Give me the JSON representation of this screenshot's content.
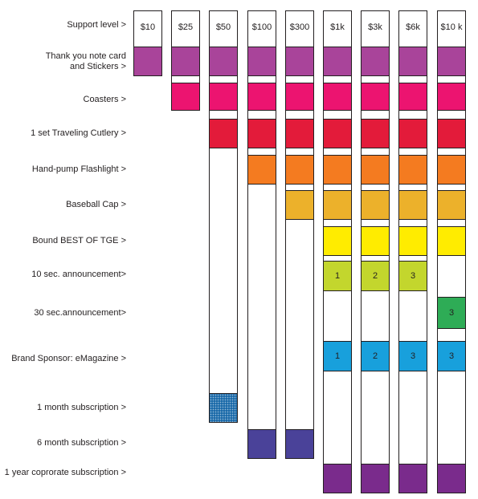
{
  "header": {
    "label": "Support level >"
  },
  "columns": [
    {
      "label": "$10",
      "bottom_row": 1
    },
    {
      "label": "$25",
      "bottom_row": 2
    },
    {
      "label": "$50",
      "bottom_row": 10
    },
    {
      "label": "$100",
      "bottom_row": 11
    },
    {
      "label": "$300",
      "bottom_row": 11
    },
    {
      "label": "$1k",
      "bottom_row": 12
    },
    {
      "label": "$3k",
      "bottom_row": 12
    },
    {
      "label": "$6k",
      "bottom_row": 12
    },
    {
      "label": "$10 k",
      "bottom_row": 12
    }
  ],
  "rows": [
    {
      "label": "Thank you note card\nand Stickers >",
      "color": "#a9449a"
    },
    {
      "label": "Coasters >",
      "color": "#ec1470"
    },
    {
      "label": "1 set Traveling Cutlery >",
      "color": "#e31b3a"
    },
    {
      "label": "Hand-pump Flashlight >",
      "color": "#f47b20"
    },
    {
      "label": "Baseball Cap >",
      "color": "#ecb12b"
    },
    {
      "label": "Bound BEST OF TGE >",
      "color": "#ffec00"
    },
    {
      "label": "10 sec. announcement>",
      "color": "#c3d62d"
    },
    {
      "label": "30 sec.announcement>",
      "color": "#2eac56"
    },
    {
      "label": "Brand Sponsor: eMagazine  >",
      "color": "#18a0dc"
    },
    {
      "label": "1 month subscription >",
      "color": "#1b6aa9"
    },
    {
      "label": "6 month subscription >",
      "color": "#4a4299"
    },
    {
      "label": "1 year coprorate subscription >",
      "color": "#7a2b8c"
    }
  ],
  "cells": [
    {
      "row": 0,
      "col": 0
    },
    {
      "row": 0,
      "col": 1
    },
    {
      "row": 0,
      "col": 2
    },
    {
      "row": 0,
      "col": 3
    },
    {
      "row": 0,
      "col": 4
    },
    {
      "row": 0,
      "col": 5
    },
    {
      "row": 0,
      "col": 6
    },
    {
      "row": 0,
      "col": 7
    },
    {
      "row": 0,
      "col": 8
    },
    {
      "row": 1,
      "col": 1
    },
    {
      "row": 1,
      "col": 2
    },
    {
      "row": 1,
      "col": 3
    },
    {
      "row": 1,
      "col": 4
    },
    {
      "row": 1,
      "col": 5
    },
    {
      "row": 1,
      "col": 6
    },
    {
      "row": 1,
      "col": 7
    },
    {
      "row": 1,
      "col": 8
    },
    {
      "row": 2,
      "col": 2
    },
    {
      "row": 2,
      "col": 3
    },
    {
      "row": 2,
      "col": 4
    },
    {
      "row": 2,
      "col": 5
    },
    {
      "row": 2,
      "col": 6
    },
    {
      "row": 2,
      "col": 7
    },
    {
      "row": 2,
      "col": 8
    },
    {
      "row": 3,
      "col": 3
    },
    {
      "row": 3,
      "col": 4
    },
    {
      "row": 3,
      "col": 5
    },
    {
      "row": 3,
      "col": 6
    },
    {
      "row": 3,
      "col": 7
    },
    {
      "row": 3,
      "col": 8
    },
    {
      "row": 4,
      "col": 4
    },
    {
      "row": 4,
      "col": 5
    },
    {
      "row": 4,
      "col": 6
    },
    {
      "row": 4,
      "col": 7
    },
    {
      "row": 4,
      "col": 8
    },
    {
      "row": 5,
      "col": 5
    },
    {
      "row": 5,
      "col": 6
    },
    {
      "row": 5,
      "col": 7
    },
    {
      "row": 5,
      "col": 8
    },
    {
      "row": 6,
      "col": 5,
      "text": "1"
    },
    {
      "row": 6,
      "col": 6,
      "text": "2"
    },
    {
      "row": 6,
      "col": 7,
      "text": "3"
    },
    {
      "row": 7,
      "col": 8,
      "text": "3"
    },
    {
      "row": 8,
      "col": 5,
      "text": "1"
    },
    {
      "row": 8,
      "col": 6,
      "text": "2"
    },
    {
      "row": 8,
      "col": 7,
      "text": "3"
    },
    {
      "row": 8,
      "col": 8,
      "text": "3"
    },
    {
      "row": 9,
      "col": 2,
      "texture": "speckled"
    },
    {
      "row": 10,
      "col": 3
    },
    {
      "row": 10,
      "col": 4
    },
    {
      "row": 11,
      "col": 5
    },
    {
      "row": 11,
      "col": 6
    },
    {
      "row": 11,
      "col": 7
    },
    {
      "row": 11,
      "col": 8
    }
  ]
}
